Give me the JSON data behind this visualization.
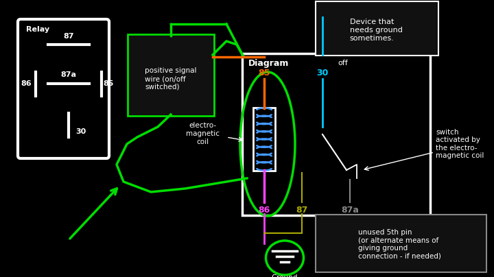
{
  "bg": "#000000",
  "white": "#ffffff",
  "green": "#00dd00",
  "orange": "#ff6600",
  "cyan": "#00ccff",
  "magenta": "#ff44ff",
  "olive": "#aaaa00",
  "gray": "#888888",
  "blue": "#4499ff",
  "dark_gray": "#333333",
  "relay_label": "Relay",
  "diagram_label": "Diagram",
  "ground_label": "Ground",
  "off_label": "off",
  "pos_signal_text": "positive signal\nwire (on/off\nswitched)",
  "em_coil_text": "electro-\nmagnetic\ncoil",
  "switch_text": "switch\nactivated by\nthe electro-\nmagnetic coil",
  "device_text": "Device that\nneeds ground\nsometimes.",
  "unused_text": "unused 5th pin\n(or alternate means of\ngiving ground\nconnection - if needed)"
}
